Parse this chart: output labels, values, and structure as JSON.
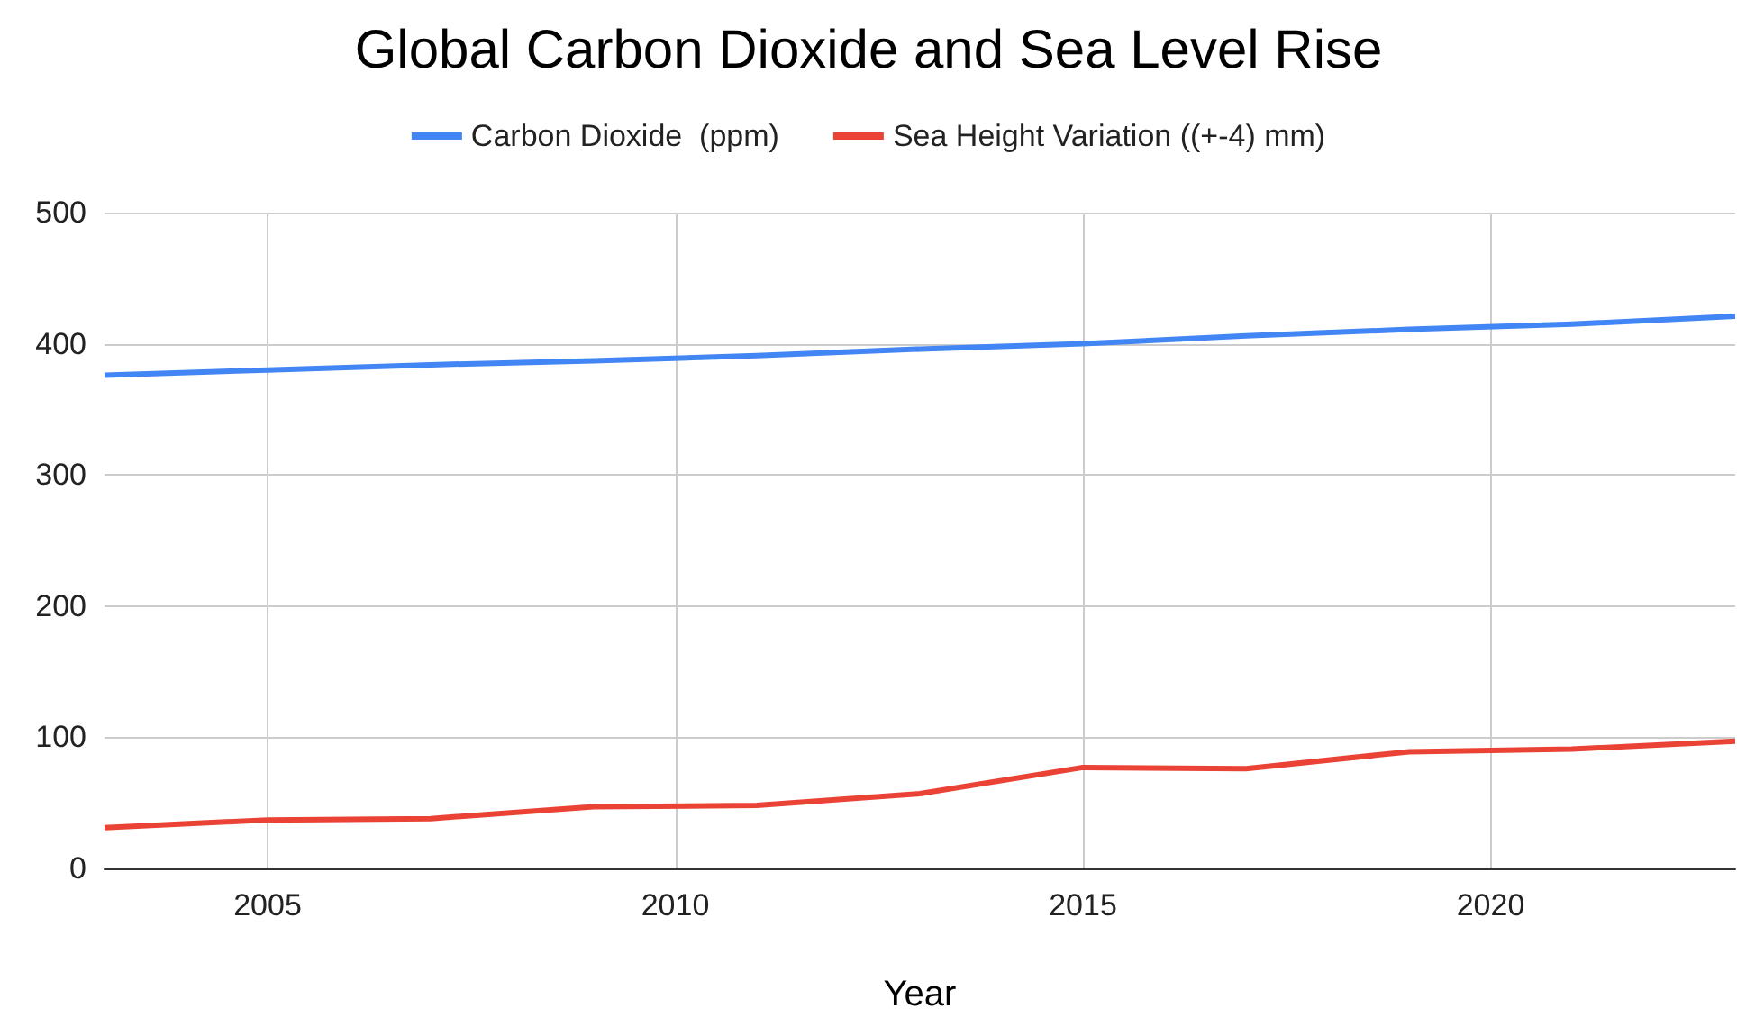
{
  "chart_data": {
    "type": "line",
    "title": "Global Carbon Dioxide and Sea Level Rise",
    "xlabel": "Year",
    "x": [
      2003,
      2005,
      2007,
      2009,
      2011,
      2013,
      2015,
      2017,
      2019,
      2021,
      2023
    ],
    "series": [
      {
        "name": "Carbon Dioxide  (ppm)",
        "color": "#4285f4",
        "values": [
          376,
          380,
          384,
          387,
          391,
          396,
          400,
          406,
          411,
          415,
          421
        ]
      },
      {
        "name": "Sea Height Variation ((+-4) mm)",
        "color": "#ea4335",
        "values": [
          31,
          37,
          38,
          47,
          48,
          57,
          77,
          76,
          89,
          91,
          97
        ]
      }
    ],
    "xlim": [
      2003,
      2023
    ],
    "xticks": [
      2005,
      2010,
      2015,
      2020
    ],
    "ylim": [
      0,
      500
    ],
    "yticks": [
      0,
      100,
      200,
      300,
      400,
      500
    ],
    "grid": true,
    "legend": "top",
    "marker": "none",
    "line_style": "solid"
  }
}
